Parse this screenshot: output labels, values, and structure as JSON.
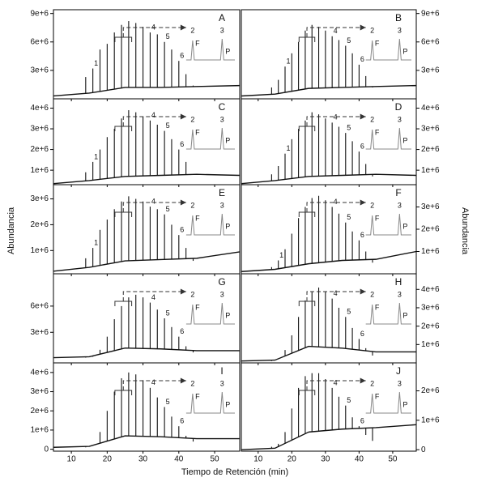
{
  "figure": {
    "x_label": "Tiempo de Retención (min)",
    "y_label": "Abundancia"
  },
  "chart_data": [
    {
      "type": "chromatogram",
      "label": "A",
      "xlim": [
        5,
        57
      ],
      "xticks": [
        10,
        20,
        30,
        40,
        50
      ],
      "ylim": [
        0,
        9400000
      ],
      "yticks": [
        {
          "value": 3000000,
          "label": "3e+6"
        },
        {
          "value": 6000000,
          "label": "6e+6"
        },
        {
          "value": 9000000,
          "label": "9e+6"
        }
      ],
      "x": [
        14,
        16,
        18,
        20,
        22,
        24,
        26,
        28,
        30,
        32,
        34,
        36,
        38,
        40,
        42,
        44
      ],
      "values": [
        2300000,
        3200000,
        5200000,
        5800000,
        7000000,
        7800000,
        8200000,
        8000000,
        7600000,
        7000000,
        6800000,
        6000000,
        5200000,
        4000000,
        2600000,
        1400000
      ],
      "baseline_x": [
        5,
        15,
        25,
        35,
        45,
        57
      ],
      "baseline": [
        300000,
        600000,
        1200000,
        1200000,
        1300000,
        1400000
      ],
      "annotations": [
        {
          "text": "1",
          "x": 16
        },
        {
          "text": "4",
          "x": 32
        },
        {
          "text": "5",
          "x": 36
        },
        {
          "text": "6",
          "x": 40
        }
      ],
      "inset_labels": [
        "2",
        "3",
        "F",
        "P"
      ]
    },
    {
      "type": "chromatogram",
      "label": "B",
      "xlim": [
        5,
        57
      ],
      "xticks": [
        10,
        20,
        30,
        40,
        50
      ],
      "ylim": [
        0,
        9400000
      ],
      "yticks": [
        {
          "value": 3000000,
          "label": "3e+6"
        },
        {
          "value": 6000000,
          "label": "6e+6"
        },
        {
          "value": 9000000,
          "label": "9e+6"
        }
      ],
      "x": [
        14,
        16,
        18,
        20,
        22,
        24,
        26,
        28,
        30,
        32,
        34,
        36,
        38,
        40,
        42,
        44
      ],
      "values": [
        1200000,
        2000000,
        3400000,
        4800000,
        6000000,
        7200000,
        7800000,
        7600000,
        7200000,
        6600000,
        6200000,
        5600000,
        4800000,
        3600000,
        2400000,
        1200000
      ],
      "baseline_x": [
        5,
        15,
        25,
        35,
        45,
        57
      ],
      "baseline": [
        300000,
        500000,
        1100000,
        1200000,
        1300000,
        1400000
      ],
      "annotations": [
        {
          "text": "1",
          "x": 18
        },
        {
          "text": "4",
          "x": 32
        },
        {
          "text": "5",
          "x": 36
        },
        {
          "text": "6",
          "x": 40
        }
      ],
      "inset_labels": [
        "2",
        "3",
        "F",
        "P"
      ]
    },
    {
      "type": "chromatogram",
      "label": "C",
      "xlim": [
        5,
        57
      ],
      "xticks": [
        10,
        20,
        30,
        40,
        50
      ],
      "ylim": [
        300000,
        4450000
      ],
      "yticks": [
        {
          "value": 1000000,
          "label": "1e+6"
        },
        {
          "value": 2000000,
          "label": "2e+6"
        },
        {
          "value": 3000000,
          "label": "3e+6"
        },
        {
          "value": 4000000,
          "label": "4e+6"
        }
      ],
      "x": [
        14,
        16,
        18,
        20,
        22,
        24,
        26,
        28,
        30,
        32,
        34,
        36,
        38,
        40,
        42,
        44
      ],
      "values": [
        900000,
        1400000,
        2000000,
        2600000,
        3000000,
        3500000,
        3900000,
        3800000,
        3600000,
        3400000,
        3200000,
        2900000,
        2500000,
        2000000,
        1400000,
        800000
      ],
      "baseline_x": [
        5,
        15,
        25,
        35,
        45,
        57
      ],
      "baseline": [
        350000,
        500000,
        700000,
        750000,
        800000,
        750000
      ],
      "annotations": [
        {
          "text": "1",
          "x": 16
        },
        {
          "text": "4",
          "x": 32
        },
        {
          "text": "5",
          "x": 36
        },
        {
          "text": "6",
          "x": 40
        }
      ],
      "inset_labels": [
        "2",
        "3",
        "F",
        "P"
      ]
    },
    {
      "type": "chromatogram",
      "label": "D",
      "xlim": [
        5,
        57
      ],
      "xticks": [
        10,
        20,
        30,
        40,
        50
      ],
      "ylim": [
        300000,
        4450000
      ],
      "yticks": [
        {
          "value": 1000000,
          "label": "1e+6"
        },
        {
          "value": 2000000,
          "label": "2e+6"
        },
        {
          "value": 3000000,
          "label": "3e+6"
        },
        {
          "value": 4000000,
          "label": "4e+6"
        }
      ],
      "x": [
        14,
        16,
        18,
        20,
        22,
        24,
        26,
        28,
        30,
        32,
        34,
        36,
        38,
        40,
        42,
        44
      ],
      "values": [
        800000,
        1200000,
        1800000,
        2500000,
        3000000,
        3400000,
        3800000,
        3700000,
        3500000,
        3300000,
        3100000,
        2800000,
        2400000,
        1900000,
        1300000,
        700000
      ],
      "baseline_x": [
        5,
        15,
        25,
        35,
        45,
        57
      ],
      "baseline": [
        350000,
        500000,
        700000,
        750000,
        800000,
        750000
      ],
      "annotations": [
        {
          "text": "1",
          "x": 18
        },
        {
          "text": "4",
          "x": 32
        },
        {
          "text": "5",
          "x": 36
        },
        {
          "text": "6",
          "x": 40
        }
      ],
      "inset_labels": [
        "2",
        "3",
        "F",
        "P"
      ]
    },
    {
      "type": "chromatogram",
      "label": "E",
      "xlim": [
        5,
        57
      ],
      "xticks": [
        10,
        20,
        30,
        40,
        50
      ],
      "ylim": [
        100000,
        3550000
      ],
      "yticks": [
        {
          "value": 1000000,
          "label": "1e+6"
        },
        {
          "value": 2000000,
          "label": "2e+6"
        },
        {
          "value": 3000000,
          "label": "3e+6"
        }
      ],
      "x": [
        14,
        16,
        18,
        20,
        22,
        24,
        26,
        28,
        30,
        32,
        34,
        36,
        38,
        40,
        42,
        44
      ],
      "values": [
        700000,
        1100000,
        1800000,
        2200000,
        2600000,
        2900000,
        3100000,
        3000000,
        2900000,
        2700000,
        2600000,
        2400000,
        2000000,
        1600000,
        1100000,
        600000
      ],
      "baseline_x": [
        5,
        15,
        25,
        35,
        45,
        57
      ],
      "baseline": [
        200000,
        350000,
        600000,
        650000,
        700000,
        950000
      ],
      "annotations": [
        {
          "text": "1",
          "x": 16
        },
        {
          "text": "4",
          "x": 32
        },
        {
          "text": "5",
          "x": 36
        },
        {
          "text": "6",
          "x": 40
        }
      ],
      "inset_labels": [
        "2",
        "3",
        "F",
        "P"
      ]
    },
    {
      "type": "chromatogram",
      "label": "F",
      "xlim": [
        5,
        57
      ],
      "xticks": [
        10,
        20,
        30,
        40,
        50
      ],
      "ylim": [
        0,
        4000000
      ],
      "yticks": [
        {
          "value": 1000000,
          "label": "1e+6"
        },
        {
          "value": 2000000,
          "label": "2e+6"
        },
        {
          "value": 3000000,
          "label": "3e+6"
        }
      ],
      "x": [
        14,
        16,
        18,
        20,
        22,
        24,
        26,
        28,
        30,
        32,
        34,
        36,
        38,
        40,
        42,
        44
      ],
      "values": [
        300000,
        600000,
        1100000,
        1800000,
        2500000,
        3000000,
        3400000,
        3500000,
        3300000,
        3000000,
        2700000,
        2300000,
        1900000,
        1500000,
        1000000,
        500000
      ],
      "baseline_x": [
        5,
        15,
        25,
        35,
        45,
        57
      ],
      "baseline": [
        100000,
        200000,
        450000,
        600000,
        650000,
        1000000
      ],
      "annotations": [
        {
          "text": "1",
          "x": 16
        },
        {
          "text": "4",
          "x": 32
        },
        {
          "text": "5",
          "x": 36
        },
        {
          "text": "6",
          "x": 40
        }
      ],
      "inset_labels": [
        "2",
        "3",
        "F",
        "P"
      ]
    },
    {
      "type": "chromatogram",
      "label": "G",
      "xlim": [
        5,
        57
      ],
      "xticks": [
        10,
        20,
        30,
        40,
        50
      ],
      "ylim": [
        -500000,
        9700000
      ],
      "yticks": [
        {
          "value": 3000000,
          "label": "3e+6"
        },
        {
          "value": 6000000,
          "label": "6e+6"
        }
      ],
      "x": [
        14,
        16,
        18,
        20,
        22,
        24,
        26,
        28,
        30,
        32,
        34,
        36,
        38,
        40,
        42,
        44
      ],
      "values": [
        100000,
        200000,
        1000000,
        2500000,
        4500000,
        6000000,
        7000000,
        7300000,
        7000000,
        6400000,
        5600000,
        4600000,
        3600000,
        2500000,
        1400000,
        700000
      ],
      "baseline_x": [
        5,
        15,
        25,
        35,
        45,
        57
      ],
      "baseline": [
        100000,
        200000,
        1200000,
        1100000,
        900000,
        900000
      ],
      "annotations": [
        {
          "text": "4",
          "x": 32
        },
        {
          "text": "5",
          "x": 36
        },
        {
          "text": "6",
          "x": 40
        }
      ],
      "inset_labels": [
        "2",
        "3",
        "F",
        "P"
      ]
    },
    {
      "type": "chromatogram",
      "label": "H",
      "xlim": [
        5,
        57
      ],
      "xticks": [
        10,
        20,
        30,
        40,
        50
      ],
      "ylim": [
        0,
        4850000
      ],
      "yticks": [
        {
          "value": 1000000,
          "label": "1e+6"
        },
        {
          "value": 2000000,
          "label": "2e+6"
        },
        {
          "value": 3000000,
          "label": "3e+6"
        },
        {
          "value": 4000000,
          "label": "4e+6"
        }
      ],
      "x": [
        14,
        16,
        18,
        20,
        22,
        24,
        26,
        28,
        30,
        32,
        34,
        36,
        38,
        40,
        42,
        44
      ],
      "values": [
        100000,
        200000,
        700000,
        1500000,
        2500000,
        3400000,
        3900000,
        4100000,
        3900000,
        3500000,
        3000000,
        2500000,
        1900000,
        1300000,
        800000,
        400000
      ],
      "baseline_x": [
        5,
        15,
        25,
        35,
        45,
        57
      ],
      "baseline": [
        100000,
        150000,
        900000,
        800000,
        600000,
        600000
      ],
      "annotations": [
        {
          "text": "4",
          "x": 32
        },
        {
          "text": "5",
          "x": 36
        },
        {
          "text": "6",
          "x": 40
        }
      ],
      "inset_labels": [
        "2",
        "3",
        "F",
        "P"
      ]
    },
    {
      "type": "chromatogram",
      "label": "I",
      "xlim": [
        5,
        57
      ],
      "xticks": [
        10,
        20,
        30,
        40,
        50
      ],
      "ylim": [
        -100000,
        4500000
      ],
      "yticks": [
        0,
        {
          "value": 1000000,
          "label": "1e+6"
        },
        {
          "value": 2000000,
          "label": "2e+6"
        },
        {
          "value": 3000000,
          "label": "3e+6"
        },
        {
          "value": 4000000,
          "label": "4e+6"
        }
      ],
      "x": [
        14,
        16,
        18,
        20,
        22,
        24,
        26,
        28,
        30,
        32,
        34,
        36,
        38,
        40,
        42,
        44
      ],
      "values": [
        100000,
        200000,
        900000,
        2000000,
        3000000,
        3700000,
        4000000,
        3900000,
        3600000,
        3200000,
        2700000,
        2200000,
        1700000,
        1200000,
        700000,
        400000
      ],
      "baseline_x": [
        5,
        15,
        25,
        35,
        45,
        57
      ],
      "baseline": [
        100000,
        150000,
        700000,
        650000,
        550000,
        550000
      ],
      "annotations": [
        {
          "text": "4",
          "x": 32
        },
        {
          "text": "5",
          "x": 36
        },
        {
          "text": "6",
          "x": 40
        }
      ],
      "inset_labels": [
        "2",
        "3",
        "F",
        "P"
      ]
    },
    {
      "type": "chromatogram",
      "label": "J",
      "xlim": [
        5,
        57
      ],
      "xticks": [
        10,
        20,
        30,
        40,
        50
      ],
      "ylim": [
        -50000,
        2950000
      ],
      "yticks": [
        0,
        {
          "value": 1000000,
          "label": "1e+6"
        },
        {
          "value": 2000000,
          "label": "2e+6"
        }
      ],
      "x": [
        14,
        16,
        18,
        20,
        22,
        24,
        26,
        28,
        30,
        32,
        34,
        36,
        38,
        40,
        42,
        44
      ],
      "values": [
        100000,
        200000,
        600000,
        1400000,
        2100000,
        2500000,
        2600000,
        2600000,
        2400000,
        2100000,
        1800000,
        1500000,
        1100000,
        800000,
        500000,
        300000
      ],
      "baseline_x": [
        5,
        15,
        25,
        35,
        45,
        57
      ],
      "baseline": [
        0,
        50000,
        600000,
        700000,
        750000,
        850000
      ],
      "annotations": [
        {
          "text": "4",
          "x": 32
        },
        {
          "text": "5",
          "x": 36
        },
        {
          "text": "6",
          "x": 40
        }
      ],
      "inset_labels": [
        "2",
        "3",
        "F",
        "P"
      ]
    }
  ]
}
